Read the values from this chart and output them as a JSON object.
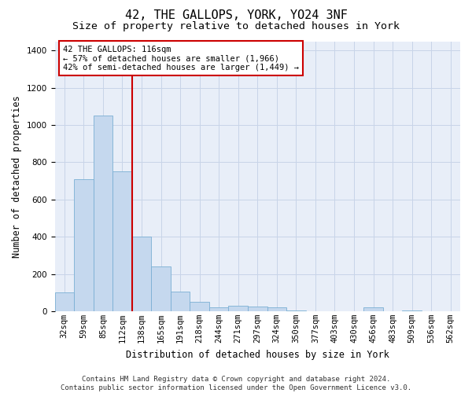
{
  "title": "42, THE GALLOPS, YORK, YO24 3NF",
  "subtitle": "Size of property relative to detached houses in York",
  "xlabel": "Distribution of detached houses by size in York",
  "ylabel": "Number of detached properties",
  "categories": [
    "32sqm",
    "59sqm",
    "85sqm",
    "112sqm",
    "138sqm",
    "165sqm",
    "191sqm",
    "218sqm",
    "244sqm",
    "271sqm",
    "297sqm",
    "324sqm",
    "350sqm",
    "377sqm",
    "403sqm",
    "430sqm",
    "456sqm",
    "483sqm",
    "509sqm",
    "536sqm",
    "562sqm"
  ],
  "values": [
    100,
    710,
    1050,
    750,
    400,
    240,
    105,
    50,
    20,
    30,
    25,
    20,
    5,
    0,
    0,
    0,
    20,
    0,
    5,
    0,
    0
  ],
  "bar_color": "#c5d8ee",
  "bar_edge_color": "#7aafd4",
  "grid_color": "#c8d4e8",
  "vline_x_index": 3,
  "vline_color": "#cc0000",
  "annotation_text": "42 THE GALLOPS: 116sqm\n← 57% of detached houses are smaller (1,966)\n42% of semi-detached houses are larger (1,449) →",
  "annotation_box_color": "#ffffff",
  "annotation_box_edge": "#cc0000",
  "ylim": [
    0,
    1450
  ],
  "yticks": [
    0,
    200,
    400,
    600,
    800,
    1000,
    1200,
    1400
  ],
  "footer_line1": "Contains HM Land Registry data © Crown copyright and database right 2024.",
  "footer_line2": "Contains public sector information licensed under the Open Government Licence v3.0.",
  "title_fontsize": 11,
  "subtitle_fontsize": 9.5,
  "axis_label_fontsize": 8.5,
  "tick_fontsize": 7.5,
  "annotation_fontsize": 7.5,
  "footer_fontsize": 6.5,
  "bg_color": "#e8eef8"
}
